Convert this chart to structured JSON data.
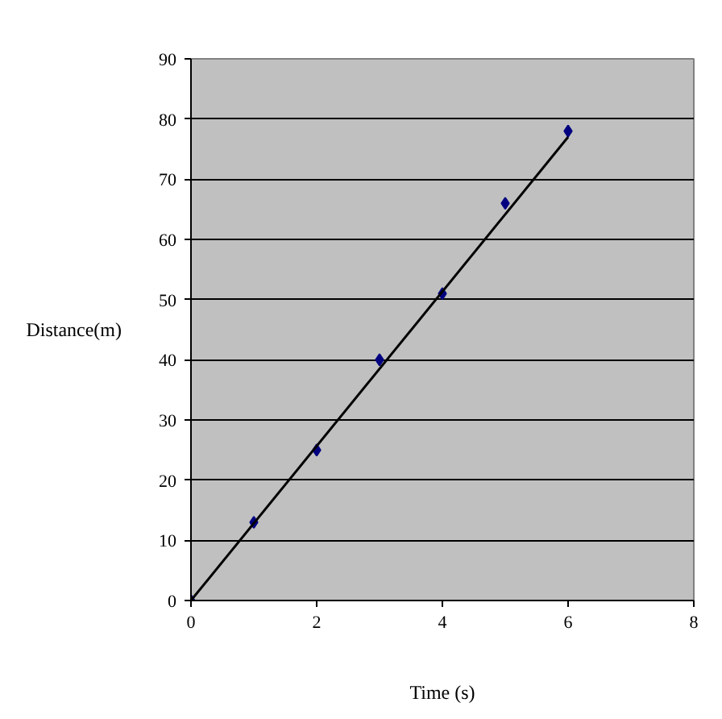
{
  "chart_data": {
    "type": "scatter",
    "xlabel": "Time (s)",
    "ylabel": "Distance(m)",
    "xlim": [
      0,
      8
    ],
    "xticks": [
      0,
      2,
      4,
      6,
      8
    ],
    "ylim": [
      0,
      90
    ],
    "yticks": [
      0,
      10,
      20,
      30,
      40,
      50,
      60,
      70,
      80,
      90
    ],
    "grid": "y",
    "series": [
      {
        "marker": "diamond",
        "color": "#000080",
        "x": [
          0,
          1,
          2,
          3,
          4,
          5,
          6
        ],
        "values": [
          0,
          13,
          25,
          40,
          51,
          66,
          78
        ]
      },
      {
        "type": "line",
        "color": "#000000",
        "x": [
          0,
          6
        ],
        "values": [
          0,
          77
        ]
      }
    ]
  }
}
